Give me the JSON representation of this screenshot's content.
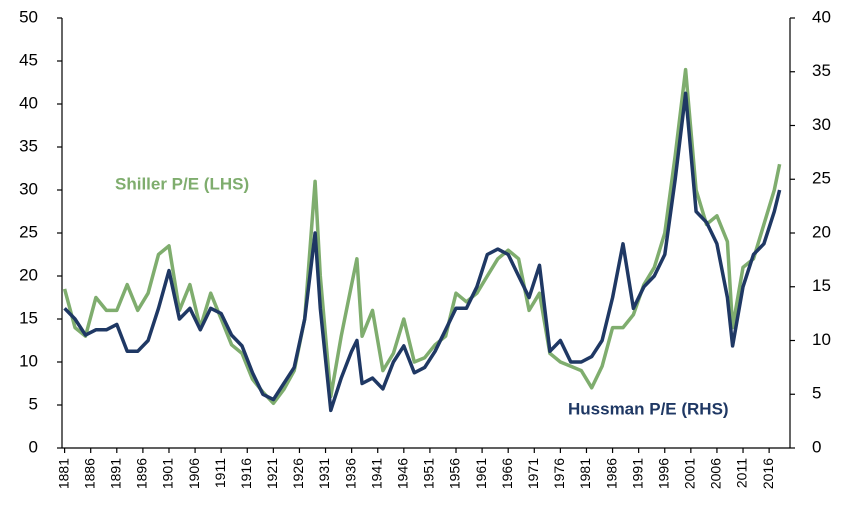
{
  "chart_data": {
    "type": "line",
    "x": [
      1881,
      1883,
      1885,
      1887,
      1889,
      1891,
      1893,
      1895,
      1897,
      1899,
      1901,
      1903,
      1905,
      1907,
      1909,
      1911,
      1913,
      1915,
      1917,
      1919,
      1921,
      1923,
      1925,
      1927,
      1929,
      1930,
      1932,
      1934,
      1936,
      1937,
      1938,
      1940,
      1942,
      1944,
      1946,
      1948,
      1950,
      1952,
      1954,
      1956,
      1958,
      1960,
      1962,
      1964,
      1966,
      1968,
      1970,
      1972,
      1974,
      1976,
      1978,
      1980,
      1982,
      1984,
      1986,
      1988,
      1990,
      1992,
      1994,
      1996,
      1998,
      2000,
      2002,
      2004,
      2006,
      2008,
      2009,
      2011,
      2013,
      2015,
      2017,
      2018
    ],
    "series": [
      {
        "name": "Shiller P/E (LHS)",
        "color": "#7fad6e",
        "axis": "y",
        "values": [
          18.5,
          14,
          13,
          17.5,
          16,
          16,
          19,
          16,
          18,
          22.5,
          23.5,
          16,
          19,
          14,
          18,
          15,
          12,
          11,
          8,
          6.5,
          5.2,
          6.8,
          9,
          15,
          31,
          20,
          6,
          13,
          19,
          22,
          13,
          16,
          9,
          11,
          15,
          10,
          10.5,
          12,
          13,
          18,
          17,
          18,
          20,
          22,
          23,
          22,
          16,
          18,
          11,
          10,
          9.5,
          9,
          7,
          9.5,
          14,
          14,
          15.5,
          19,
          21,
          25,
          34,
          44,
          30,
          26,
          27,
          24,
          14,
          21,
          22,
          26,
          30,
          33
        ]
      },
      {
        "name": "Hussman P/E (RHS)",
        "color": "#1f3864",
        "axis": "y2",
        "values": [
          13,
          12,
          10.5,
          11,
          11,
          11.5,
          9,
          9,
          10,
          13,
          16.5,
          12,
          13,
          11,
          13,
          12.5,
          10.5,
          9.5,
          7,
          5,
          4.5,
          6,
          7.5,
          12,
          20,
          13,
          3.5,
          6.5,
          9,
          10,
          6,
          6.5,
          5.5,
          8,
          9.5,
          7,
          7.5,
          9,
          11,
          13,
          13,
          15,
          18,
          18.5,
          18,
          16,
          14,
          17,
          9,
          10,
          8,
          8,
          8.5,
          10,
          14,
          19,
          13,
          15,
          16,
          18,
          25,
          33,
          22,
          21,
          19,
          14,
          9.5,
          15,
          18,
          19,
          22,
          24
        ]
      }
    ],
    "xlim": [
      1880.5,
      2020
    ],
    "xticks": [
      1881,
      1886,
      1891,
      1896,
      1901,
      1906,
      1911,
      1916,
      1921,
      1926,
      1931,
      1936,
      1941,
      1946,
      1951,
      1956,
      1961,
      1966,
      1971,
      1976,
      1981,
      1986,
      1991,
      1996,
      2001,
      2006,
      2011,
      2016
    ],
    "ylim": [
      0,
      50
    ],
    "yticks": [
      0,
      5,
      10,
      15,
      20,
      25,
      30,
      35,
      40,
      45,
      50
    ],
    "y2lim": [
      0,
      40
    ],
    "y2ticks": [
      0,
      5,
      10,
      15,
      20,
      25,
      30,
      35,
      40
    ],
    "grid": false
  }
}
